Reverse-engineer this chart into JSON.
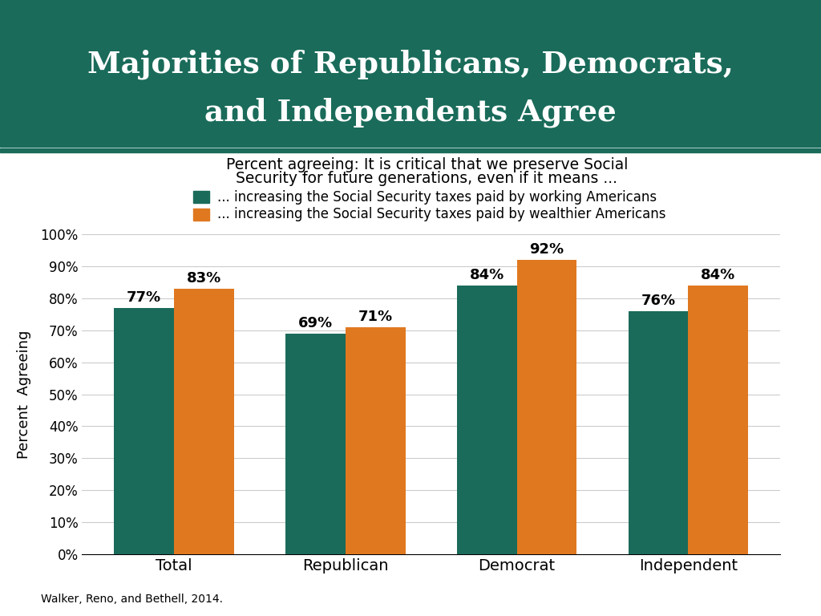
{
  "title_line1": "Majorities of Republicans, Democrats,",
  "title_line2": "and Independents Agree",
  "title_bg_color": "#1a6b5a",
  "title_text_color": "#ffffff",
  "subtitle_line1": "Percent agreeing: It is critical that we preserve Social",
  "subtitle_line2": "Security for future generations, even if it means ...",
  "legend_working": "... increasing the Social Security taxes paid by working Americans",
  "legend_wealthier": "... increasing the Social Security taxes paid by wealthier Americans",
  "categories": [
    "Total",
    "Republican",
    "Democrat",
    "Independent"
  ],
  "values_working": [
    77,
    69,
    84,
    76
  ],
  "values_wealthier": [
    83,
    71,
    92,
    84
  ],
  "color_working": "#1a6b5a",
  "color_wealthier": "#e07820",
  "ylabel": "Percent  Agreeing",
  "ylim": [
    0,
    100
  ],
  "yticks": [
    0,
    10,
    20,
    30,
    40,
    50,
    60,
    70,
    80,
    90,
    100
  ],
  "ytick_labels": [
    "0%",
    "10%",
    "20%",
    "30%",
    "40%",
    "50%",
    "60%",
    "70%",
    "80%",
    "90%",
    "100%"
  ],
  "footer": "Walker, Reno, and Bethell, 2014.",
  "bg_color": "#ffffff",
  "bar_width": 0.35,
  "title_bg_dark": "#1a6b5a",
  "sep_color": "#1a6b5a",
  "sep_thin_color": "#2d8c6f",
  "grid_color": "#cccccc"
}
